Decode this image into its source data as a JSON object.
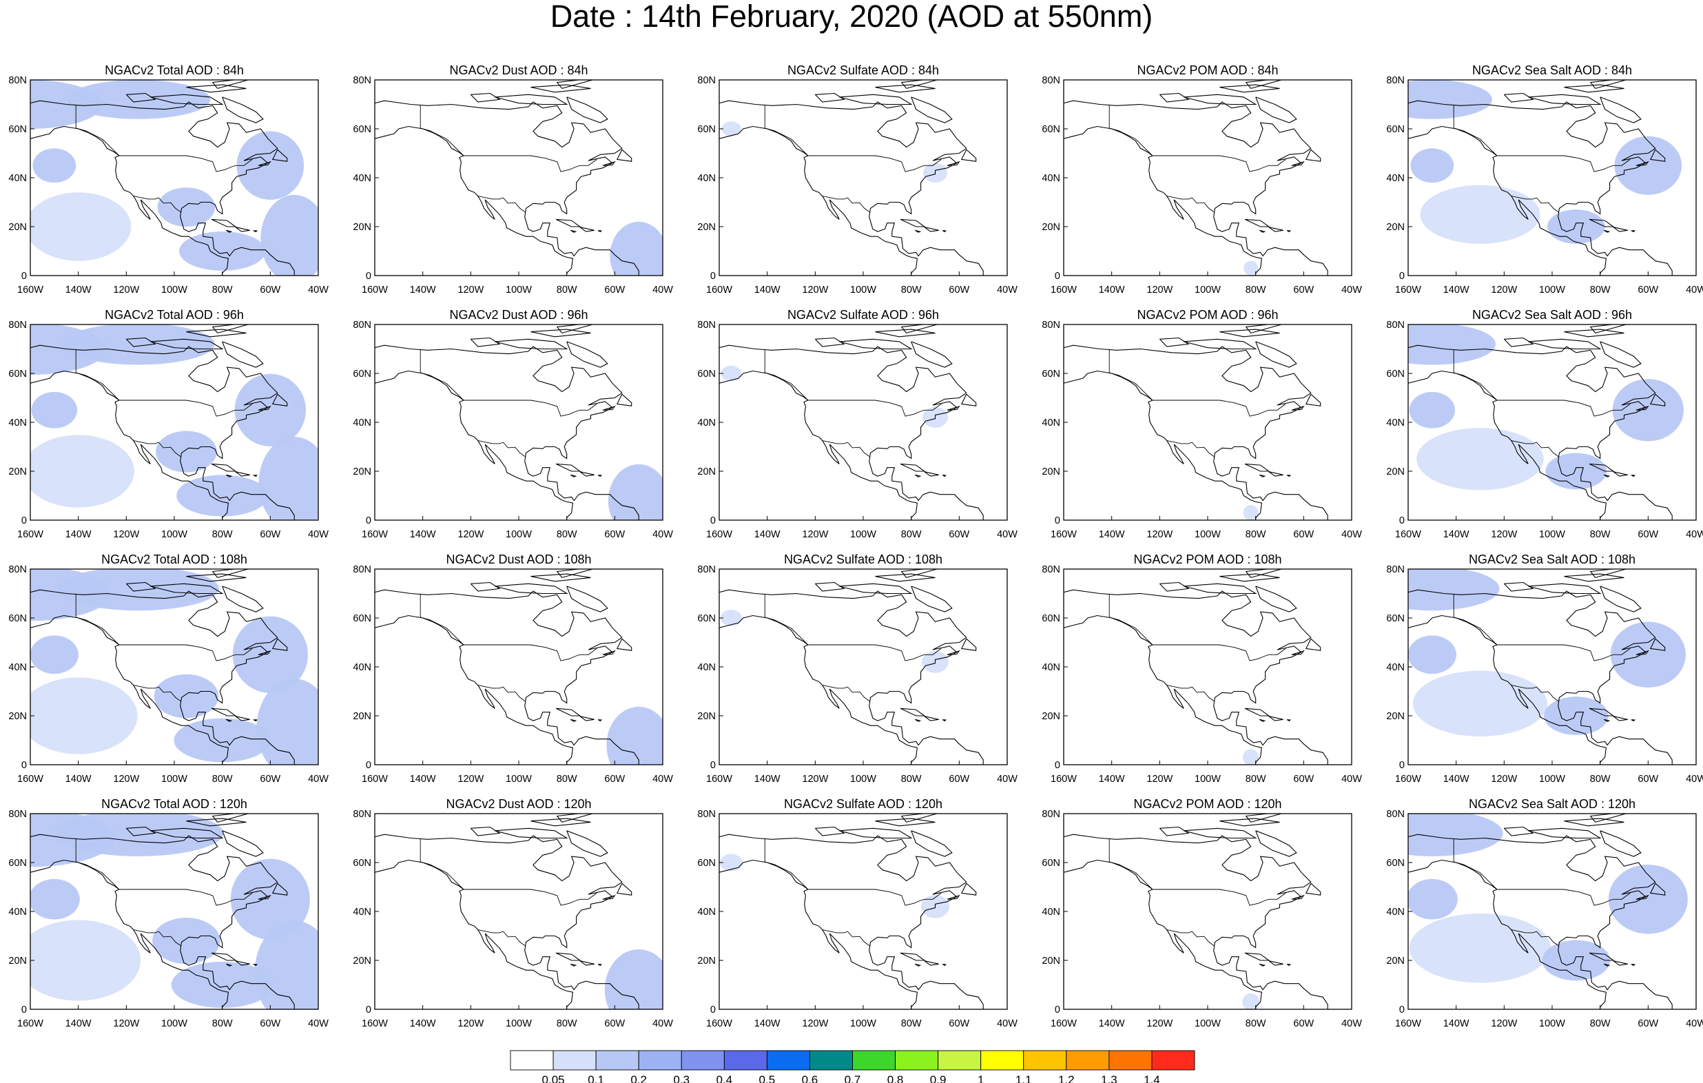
{
  "title": "Date : 14th February, 2020 (AOD at 550nm)",
  "panel_titles": [
    [
      "NGACv2 Total AOD : 84h",
      "NGACv2 Dust AOD : 84h",
      "NGACv2 Sulfate AOD : 84h",
      "NGACv2 POM AOD : 84h",
      "NGACv2 Sea Salt AOD : 84h"
    ],
    [
      "NGACv2 Total AOD : 96h",
      "NGACv2 Dust AOD : 96h",
      "NGACv2 Sulfate AOD : 96h",
      "NGACv2 POM AOD : 96h",
      "NGACv2 Sea Salt AOD : 96h"
    ],
    [
      "NGACv2 Total AOD : 108h",
      "NGACv2 Dust AOD : 108h",
      "NGACv2 Sulfate AOD : 108h",
      "NGACv2 POM AOD : 108h",
      "NGACv2 Sea Salt AOD : 108h"
    ],
    [
      "NGACv2 Total AOD : 120h",
      "NGACv2 Dust AOD : 120h",
      "NGACv2 Sulfate AOD : 120h",
      "NGACv2 POM AOD : 120h",
      "NGACv2 Sea Salt  AOD : 120h"
    ]
  ],
  "lat_ticks": [
    {
      "value": 80,
      "label": "80N"
    },
    {
      "value": 60,
      "label": "60N"
    },
    {
      "value": 40,
      "label": "40N"
    },
    {
      "value": 20,
      "label": "20N"
    },
    {
      "value": 0,
      "label": "0"
    }
  ],
  "lon_ticks": [
    {
      "value": -160,
      "label": "160W"
    },
    {
      "value": -140,
      "label": "140W"
    },
    {
      "value": -120,
      "label": "120W"
    },
    {
      "value": -100,
      "label": "100W"
    },
    {
      "value": -80,
      "label": "80W"
    },
    {
      "value": -60,
      "label": "60W"
    },
    {
      "value": -40,
      "label": "40W"
    }
  ],
  "map_extent": {
    "lon": [
      -160,
      -40
    ],
    "lat": [
      0,
      80
    ]
  },
  "colorbar": {
    "labels": [
      "0.05",
      "0.1",
      "0.2",
      "0.3",
      "0.4",
      "0.5",
      "0.6",
      "0.7",
      "0.8",
      "0.9",
      "1",
      "1.1",
      "1.2",
      "1.3",
      "1.4"
    ],
    "colors": [
      "#ffffff",
      "#d6e0fa",
      "#b8c8f5",
      "#9cb2f2",
      "#7f93ef",
      "#5a68ea",
      "#0a6cf0",
      "#008a8a",
      "#3bd72b",
      "#8af21d",
      "#c8f442",
      "#ffff00",
      "#ffc400",
      "#ff9c00",
      "#ff7300",
      "#ff2a1a"
    ]
  },
  "fields": {
    "total": [
      {
        "lon": -160,
        "lat": 70,
        "rlon": 30,
        "rlat": 10,
        "level": 0.12
      },
      {
        "lon": -115,
        "lat": 72,
        "rlon": 30,
        "rlat": 8,
        "level": 0.1
      },
      {
        "lon": -150,
        "lat": 45,
        "rlon": 9,
        "rlat": 7,
        "level": 0.14
      },
      {
        "lon": -140,
        "lat": 20,
        "rlon": 22,
        "rlat": 14,
        "level": 0.09
      },
      {
        "lon": -95,
        "lat": 28,
        "rlon": 12,
        "rlat": 8,
        "level": 0.13
      },
      {
        "lon": -60,
        "lat": 45,
        "rlon": 14,
        "rlat": 14,
        "level": 0.15
      },
      {
        "lon": -50,
        "lat": 15,
        "rlon": 14,
        "rlat": 18,
        "level": 0.16
      },
      {
        "lon": -80,
        "lat": 10,
        "rlon": 18,
        "rlat": 8,
        "level": 0.1
      }
    ],
    "dust": [
      {
        "lon": -50,
        "lat": 8,
        "rlon": 12,
        "rlat": 14,
        "level": 0.11
      }
    ],
    "sulfate": [
      {
        "lon": -155,
        "lat": 60,
        "rlon": 4,
        "rlat": 3,
        "level": 0.08
      },
      {
        "lon": -70,
        "lat": 42,
        "rlon": 5,
        "rlat": 4,
        "level": 0.08
      }
    ],
    "pom": [
      {
        "lon": -82,
        "lat": 3,
        "rlon": 3,
        "rlat": 3,
        "level": 0.08
      }
    ],
    "seasalt": [
      {
        "lon": -150,
        "lat": 72,
        "rlon": 25,
        "rlat": 8,
        "level": 0.11
      },
      {
        "lon": -150,
        "lat": 45,
        "rlon": 9,
        "rlat": 7,
        "level": 0.14
      },
      {
        "lon": -130,
        "lat": 25,
        "rlon": 25,
        "rlat": 12,
        "level": 0.09
      },
      {
        "lon": -60,
        "lat": 45,
        "rlon": 14,
        "rlat": 12,
        "level": 0.14
      },
      {
        "lon": -90,
        "lat": 20,
        "rlon": 12,
        "rlat": 7,
        "level": 0.12
      }
    ]
  }
}
